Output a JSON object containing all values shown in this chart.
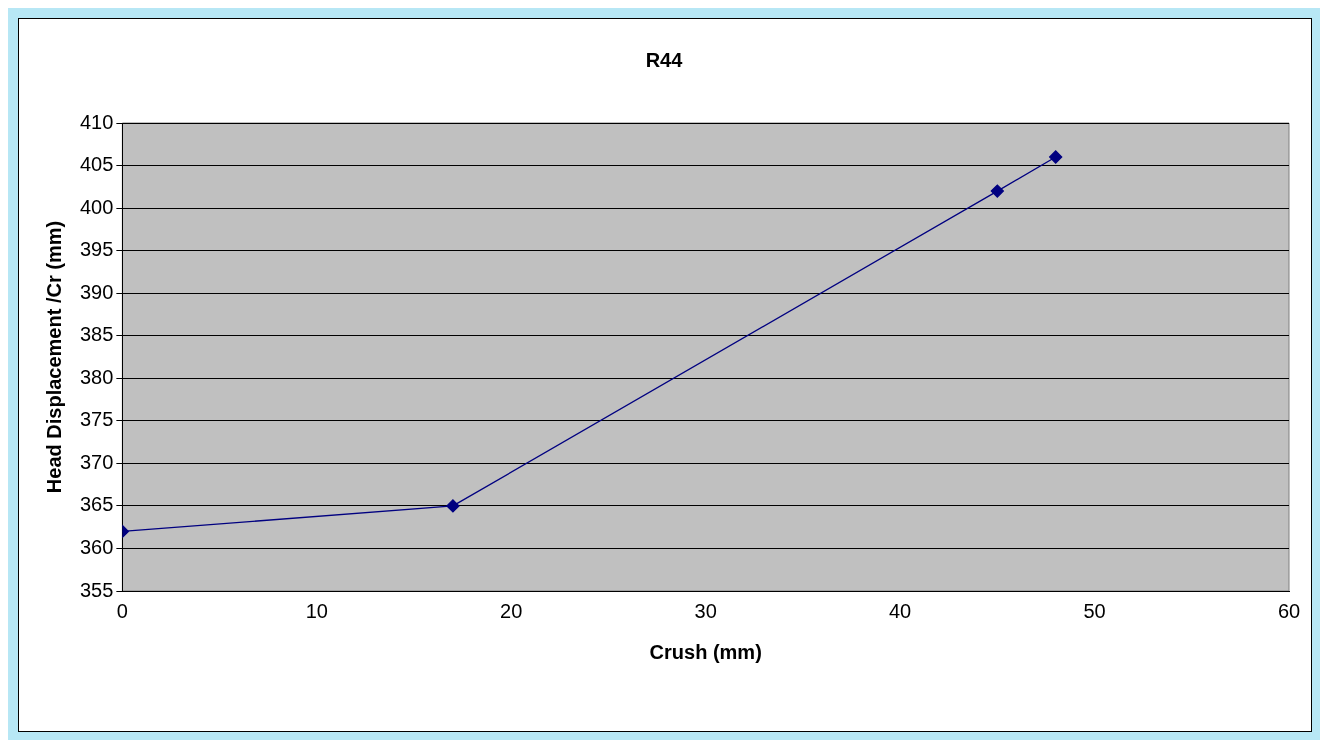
{
  "chart_data": {
    "type": "line",
    "title": "R44",
    "xlabel": "Crush (mm)",
    "ylabel": "Head Displacement /Cr (mm)",
    "x": [
      0,
      17,
      45,
      48
    ],
    "series": [
      {
        "color": "#000080",
        "values": [
          362,
          365,
          402,
          406
        ]
      }
    ],
    "xlim": [
      0,
      60
    ],
    "xticks": [
      0,
      10,
      20,
      30,
      40,
      50,
      60
    ],
    "ylim": [
      355,
      410
    ],
    "yticks": [
      355,
      360,
      365,
      370,
      375,
      380,
      385,
      390,
      395,
      400,
      405,
      410
    ],
    "grid": "y",
    "marker": "diamond",
    "line_style": "solid",
    "legend": false
  }
}
